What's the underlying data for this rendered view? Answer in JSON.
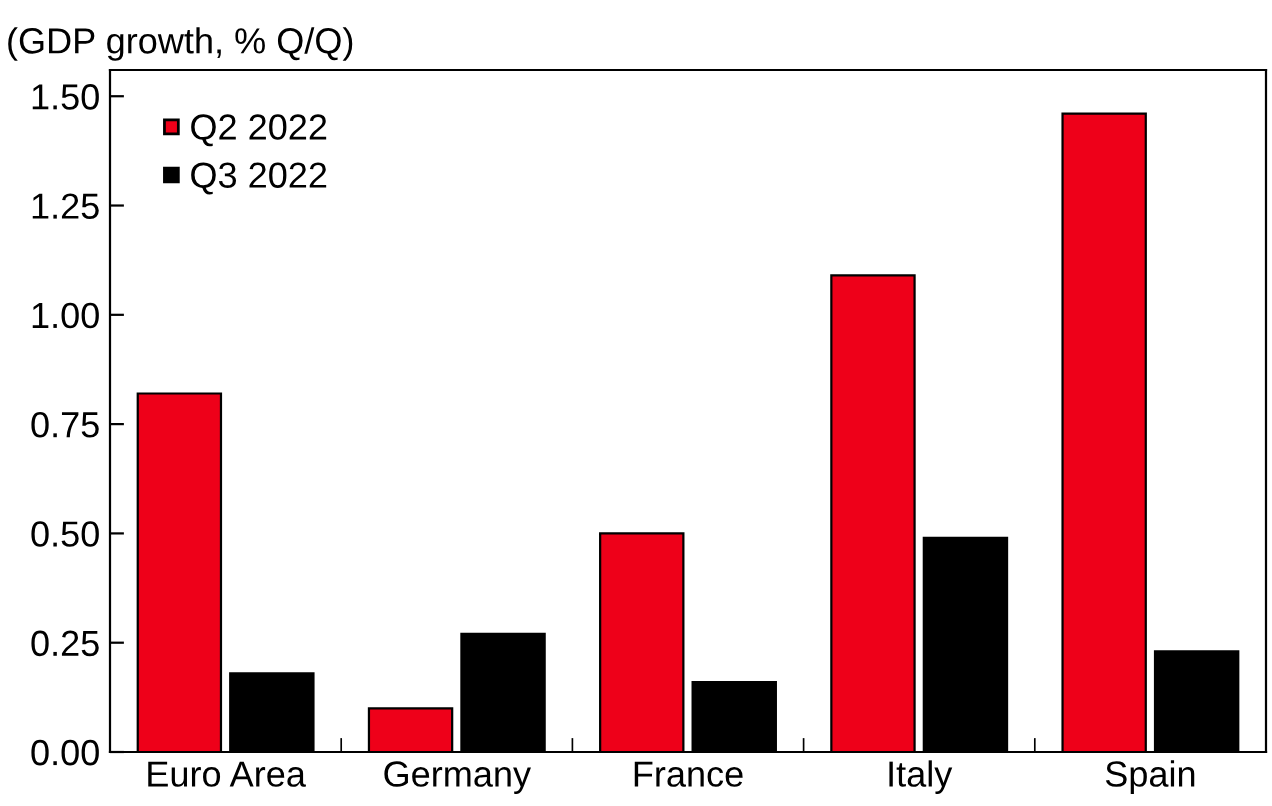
{
  "chart_data": {
    "type": "bar",
    "title": "(GDP growth, % Q/Q)",
    "categories": [
      "Euro Area",
      "Germany",
      "France",
      "Italy",
      "Spain"
    ],
    "series": [
      {
        "name": "Q2 2022",
        "color": "#ee0019",
        "values": [
          0.82,
          0.1,
          0.5,
          1.09,
          1.46
        ]
      },
      {
        "name": "Q3 2022",
        "color": "#000000",
        "values": [
          0.18,
          0.27,
          0.16,
          0.49,
          0.23
        ]
      }
    ],
    "ylim": [
      0,
      1.56
    ],
    "yticks": [
      {
        "value": 0,
        "label": "0.00"
      },
      {
        "value": 0.25,
        "label": "0.25"
      },
      {
        "value": 0.5,
        "label": "0.50"
      },
      {
        "value": 0.75,
        "label": "0.75"
      },
      {
        "value": 1,
        "label": "1.00"
      },
      {
        "value": 1.25,
        "label": "1.25"
      },
      {
        "value": 1.5,
        "label": "1.50"
      }
    ],
    "grid": false,
    "legend": "top left"
  }
}
